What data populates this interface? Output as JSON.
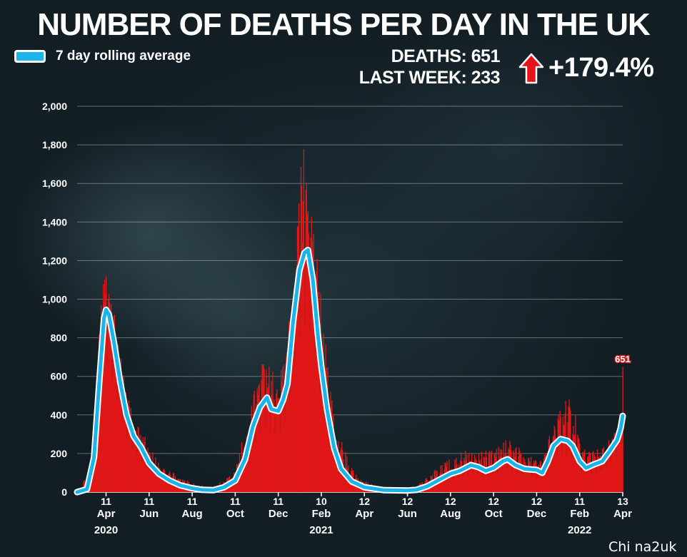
{
  "title": "NUMBER OF DEATHS PER DAY IN THE UK",
  "legend": {
    "label": "7 day rolling average",
    "swatch_color": "#19b4ea"
  },
  "stats": {
    "deaths_line": "DEATHS: 651",
    "last_week_line": "LAST WEEK: 233",
    "change": "+179.4%",
    "arrow_icon": "arrow-up-icon",
    "arrow_color": "#e5141b"
  },
  "watermark": "Chi na2uk",
  "colors": {
    "bars": "#e01818",
    "average_line": "#19b4ea",
    "average_line_outline": "#ffffff"
  },
  "chart_data": {
    "type": "bar",
    "title": "NUMBER OF DEATHS PER DAY IN THE UK",
    "ylim": [
      0,
      2000
    ],
    "yticks": [
      0,
      200,
      400,
      600,
      800,
      1000,
      1200,
      1400,
      1600,
      1800,
      2000
    ],
    "ytick_labels": [
      "0",
      "200",
      "400",
      "600",
      "800",
      "1,000",
      "1,200",
      "1,400",
      "1,600",
      "1,800",
      "2,000"
    ],
    "xlim": [
      "2020-03-01",
      "2022-04-13"
    ],
    "xticks": [
      {
        "date": "2020-04-11",
        "day": "11",
        "month": "Apr",
        "year": "2020"
      },
      {
        "date": "2020-06-11",
        "day": "11",
        "month": "Jun",
        "year": ""
      },
      {
        "date": "2020-08-11",
        "day": "11",
        "month": "Aug",
        "year": ""
      },
      {
        "date": "2020-10-11",
        "day": "11",
        "month": "Oct",
        "year": ""
      },
      {
        "date": "2020-12-11",
        "day": "11",
        "month": "Dec",
        "year": ""
      },
      {
        "date": "2021-02-10",
        "day": "10",
        "month": "Feb",
        "year": "2021"
      },
      {
        "date": "2021-04-12",
        "day": "12",
        "month": "Apr",
        "year": ""
      },
      {
        "date": "2021-06-12",
        "day": "12",
        "month": "Jun",
        "year": ""
      },
      {
        "date": "2021-08-12",
        "day": "12",
        "month": "Aug",
        "year": ""
      },
      {
        "date": "2021-10-12",
        "day": "12",
        "month": "Oct",
        "year": ""
      },
      {
        "date": "2021-12-12",
        "day": "12",
        "month": "Dec",
        "year": ""
      },
      {
        "date": "2022-02-11",
        "day": "11",
        "month": "Feb",
        "year": "2022"
      },
      {
        "date": "2022-04-13",
        "day": "13",
        "month": "Apr",
        "year": ""
      }
    ],
    "grid": true,
    "annotation": {
      "label": "651",
      "date": "2022-04-13",
      "value": 651
    },
    "series": [
      {
        "name": "7 day rolling average",
        "kind": "line",
        "points": [
          [
            "2020-03-01",
            0
          ],
          [
            "2020-03-15",
            15
          ],
          [
            "2020-03-25",
            180
          ],
          [
            "2020-04-01",
            550
          ],
          [
            "2020-04-08",
            900
          ],
          [
            "2020-04-11",
            945
          ],
          [
            "2020-04-15",
            920
          ],
          [
            "2020-04-22",
            780
          ],
          [
            "2020-05-01",
            570
          ],
          [
            "2020-05-10",
            400
          ],
          [
            "2020-05-20",
            290
          ],
          [
            "2020-05-31",
            230
          ],
          [
            "2020-06-11",
            150
          ],
          [
            "2020-06-25",
            95
          ],
          [
            "2020-07-10",
            60
          ],
          [
            "2020-07-25",
            35
          ],
          [
            "2020-08-11",
            20
          ],
          [
            "2020-08-25",
            12
          ],
          [
            "2020-09-10",
            10
          ],
          [
            "2020-09-25",
            25
          ],
          [
            "2020-10-11",
            60
          ],
          [
            "2020-10-25",
            170
          ],
          [
            "2020-11-05",
            340
          ],
          [
            "2020-11-15",
            440
          ],
          [
            "2020-11-25",
            490
          ],
          [
            "2020-12-01",
            430
          ],
          [
            "2020-12-11",
            420
          ],
          [
            "2020-12-18",
            480
          ],
          [
            "2020-12-24",
            560
          ],
          [
            "2021-01-01",
            880
          ],
          [
            "2021-01-10",
            1150
          ],
          [
            "2021-01-17",
            1240
          ],
          [
            "2021-01-22",
            1255
          ],
          [
            "2021-01-29",
            1100
          ],
          [
            "2021-02-05",
            820
          ],
          [
            "2021-02-10",
            650
          ],
          [
            "2021-02-18",
            430
          ],
          [
            "2021-02-28",
            230
          ],
          [
            "2021-03-10",
            120
          ],
          [
            "2021-03-25",
            55
          ],
          [
            "2021-04-12",
            25
          ],
          [
            "2021-04-25",
            18
          ],
          [
            "2021-05-10",
            10
          ],
          [
            "2021-06-12",
            8
          ],
          [
            "2021-06-25",
            12
          ],
          [
            "2021-07-10",
            30
          ],
          [
            "2021-07-25",
            60
          ],
          [
            "2021-08-12",
            95
          ],
          [
            "2021-08-25",
            110
          ],
          [
            "2021-09-10",
            140
          ],
          [
            "2021-09-20",
            130
          ],
          [
            "2021-10-01",
            110
          ],
          [
            "2021-10-12",
            125
          ],
          [
            "2021-10-25",
            160
          ],
          [
            "2021-11-01",
            170
          ],
          [
            "2021-11-12",
            140
          ],
          [
            "2021-11-25",
            120
          ],
          [
            "2021-12-12",
            115
          ],
          [
            "2021-12-20",
            100
          ],
          [
            "2021-12-28",
            160
          ],
          [
            "2022-01-05",
            240
          ],
          [
            "2022-01-15",
            275
          ],
          [
            "2022-01-25",
            265
          ],
          [
            "2022-02-01",
            240
          ],
          [
            "2022-02-11",
            160
          ],
          [
            "2022-02-20",
            125
          ],
          [
            "2022-03-01",
            140
          ],
          [
            "2022-03-15",
            160
          ],
          [
            "2022-03-25",
            210
          ],
          [
            "2022-04-05",
            270
          ],
          [
            "2022-04-10",
            330
          ],
          [
            "2022-04-13",
            395
          ]
        ]
      },
      {
        "name": "Daily deaths",
        "kind": "bar",
        "envelope": [
          [
            "2020-03-01",
            0
          ],
          [
            "2020-03-20",
            120
          ],
          [
            "2020-03-28",
            600
          ],
          [
            "2020-04-05",
            1050
          ],
          [
            "2020-04-12",
            1150
          ],
          [
            "2020-04-20",
            1000
          ],
          [
            "2020-05-01",
            720
          ],
          [
            "2020-05-10",
            540
          ],
          [
            "2020-05-20",
            400
          ],
          [
            "2020-06-01",
            330
          ],
          [
            "2020-06-11",
            250
          ],
          [
            "2020-06-25",
            150
          ],
          [
            "2020-07-10",
            110
          ],
          [
            "2020-07-25",
            80
          ],
          [
            "2020-08-11",
            50
          ],
          [
            "2020-09-01",
            30
          ],
          [
            "2020-09-25",
            60
          ],
          [
            "2020-10-11",
            130
          ],
          [
            "2020-10-25",
            330
          ],
          [
            "2020-11-10",
            620
          ],
          [
            "2020-11-20",
            700
          ],
          [
            "2020-12-01",
            650
          ],
          [
            "2020-12-11",
            560
          ],
          [
            "2020-12-24",
            800
          ],
          [
            "2021-01-05",
            1400
          ],
          [
            "2021-01-15",
            1820
          ],
          [
            "2021-01-22",
            1720
          ],
          [
            "2021-01-30",
            1450
          ],
          [
            "2021-02-10",
            1020
          ],
          [
            "2021-02-20",
            620
          ],
          [
            "2021-03-01",
            380
          ],
          [
            "2021-03-15",
            220
          ],
          [
            "2021-04-01",
            90
          ],
          [
            "2021-04-12",
            60
          ],
          [
            "2021-05-01",
            30
          ],
          [
            "2021-06-12",
            20
          ],
          [
            "2021-07-10",
            80
          ],
          [
            "2021-07-25",
            130
          ],
          [
            "2021-08-12",
            180
          ],
          [
            "2021-09-01",
            220
          ],
          [
            "2021-09-20",
            210
          ],
          [
            "2021-10-12",
            230
          ],
          [
            "2021-10-25",
            290
          ],
          [
            "2021-11-10",
            260
          ],
          [
            "2021-12-01",
            190
          ],
          [
            "2021-12-20",
            170
          ],
          [
            "2022-01-01",
            330
          ],
          [
            "2022-01-15",
            440
          ],
          [
            "2022-01-25",
            530
          ],
          [
            "2022-02-05",
            400
          ],
          [
            "2022-02-11",
            300
          ],
          [
            "2022-02-25",
            210
          ],
          [
            "2022-03-15",
            230
          ],
          [
            "2022-03-25",
            280
          ],
          [
            "2022-04-05",
            330
          ],
          [
            "2022-04-12",
            420
          ],
          [
            "2022-04-13",
            651
          ]
        ]
      }
    ]
  }
}
